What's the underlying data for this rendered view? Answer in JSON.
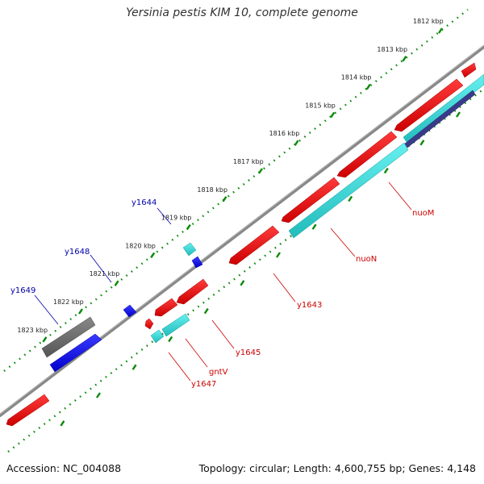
{
  "title": "Yersinia pestis KIM 10, complete genome",
  "footer": {
    "accession": "Accession: NC_004088",
    "summary": "Topology: circular; Length: 4,600,755 bp; Genes: 4,148"
  },
  "colors": {
    "backbone": "#8c8c8c",
    "tick": "#0a8a0a",
    "gene_red": "#ee0000",
    "gene_cyan": "#33dddd",
    "gene_blue": "#1010ee",
    "gene_gray": "#6e6e6e",
    "gene_navy": "#3a3a8a",
    "label_red": "#cc0000",
    "label_blue": "#0000aa"
  },
  "kbp_ticks": [
    "1812 kbp",
    "1813 kbp",
    "1814 kbp",
    "1815 kbp",
    "1816 kbp",
    "1817 kbp",
    "1818 kbp",
    "1819 kbp",
    "1820 kbp",
    "1821 kbp",
    "1822 kbp",
    "1823 kbp"
  ],
  "gene_labels": [
    {
      "text": "y1644",
      "color": "blue"
    },
    {
      "text": "y1648",
      "color": "blue"
    },
    {
      "text": "y1649",
      "color": "blue"
    },
    {
      "text": "nuoM",
      "color": "red"
    },
    {
      "text": "nuoN",
      "color": "red"
    },
    {
      "text": "y1643",
      "color": "red"
    },
    {
      "text": "y1645",
      "color": "red"
    },
    {
      "text": "gntV",
      "color": "red"
    },
    {
      "text": "y1647",
      "color": "red"
    }
  ]
}
